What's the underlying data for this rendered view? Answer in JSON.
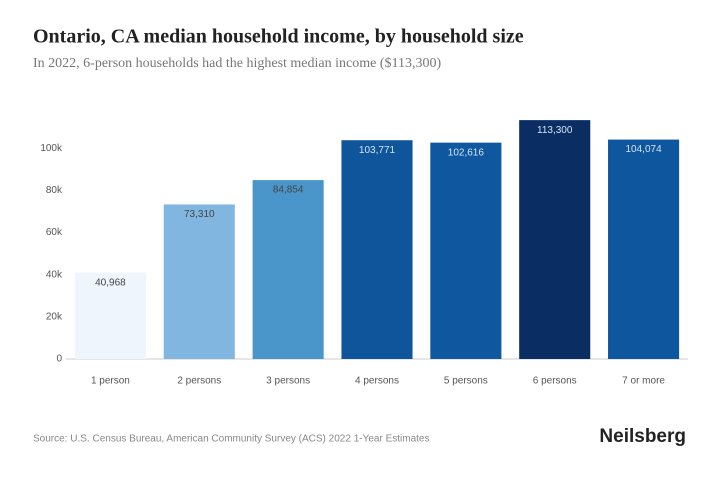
{
  "chart_data": {
    "type": "bar",
    "title": "Ontario, CA median household income, by household size",
    "subtitle": "In 2022, 6-person households had the highest median income ($113,300)",
    "categories": [
      "1 person",
      "2 persons",
      "3 persons",
      "4 persons",
      "5 persons",
      "6 persons",
      "7 or more"
    ],
    "values": [
      40968,
      73310,
      84854,
      103771,
      102616,
      113300,
      104074
    ],
    "value_labels": [
      "40,968",
      "73,310",
      "84,854",
      "103,771",
      "102,616",
      "113,300",
      "104,074"
    ],
    "colors": [
      "#eef5fd",
      "#80b6df",
      "#4a96cb",
      "#0e559c",
      "#0f58a0",
      "#0a2e64",
      "#0e579f"
    ],
    "ylim": [
      0,
      120000
    ],
    "yticks": [
      0,
      {
        "value": 20000,
        "label": "20k"
      },
      {
        "value": 40000,
        "label": "40k"
      },
      {
        "value": 60000,
        "label": "60k"
      },
      {
        "value": 80000,
        "label": "80k"
      },
      {
        "value": 100000,
        "label": "100k"
      }
    ],
    "source": "Source: U.S. Census Bureau, American Community Survey (ACS) 2022 1-Year Estimates",
    "brand": "Neilsberg"
  }
}
